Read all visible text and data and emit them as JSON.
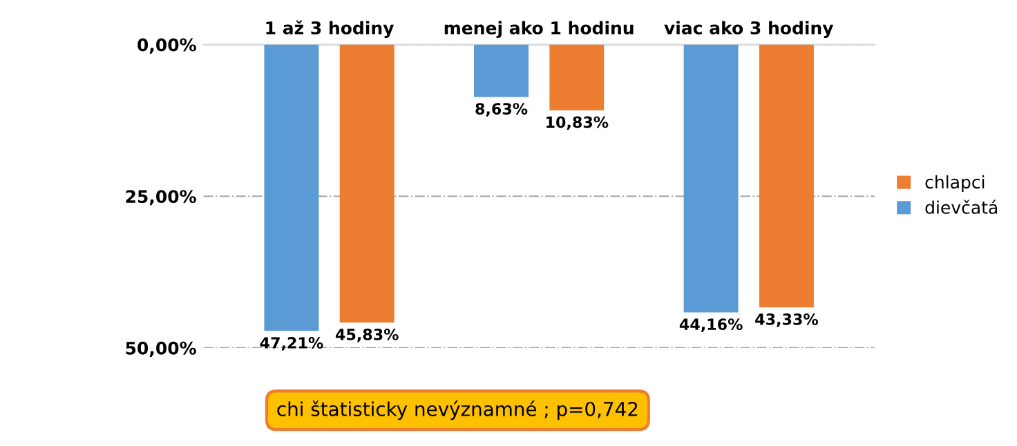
{
  "chart_data": {
    "type": "bar",
    "categories": [
      "1 až 3 hodiny",
      "menej ako 1 hodinu",
      "viac ako 3 hodiny"
    ],
    "series": [
      {
        "name": "dievčatá",
        "color": "#5b9bd5",
        "values": [
          47.21,
          8.63,
          44.16
        ],
        "value_labels": [
          "47,21%",
          "8,63%",
          "44,16%"
        ]
      },
      {
        "name": "chlapci",
        "color": "#ed7d31",
        "values": [
          45.83,
          10.83,
          43.33
        ],
        "value_labels": [
          "45,83%",
          "10,83%",
          "43,33%"
        ]
      }
    ],
    "ylim": [
      50,
      0
    ],
    "yticks": [
      {
        "value": 0,
        "label": "0,00%"
      },
      {
        "value": 25,
        "label": "25,00%"
      },
      {
        "value": 50,
        "label": "50,00%"
      }
    ],
    "grid": "y",
    "legend": "right",
    "annotations": [
      "chi štatisticky nevýznamné ; p=0,742"
    ]
  }
}
